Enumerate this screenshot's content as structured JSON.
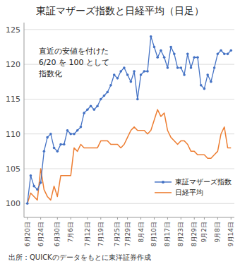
{
  "chart_data": {
    "type": "line",
    "title": "東証マザーズ指数と日経平均（日足）",
    "annotation": "直近の安値を付けた\n6/20 を 100 として\n指数化",
    "source": "出所：QUICKのデータをもとに東洋証券作成",
    "categories": [
      "6月20日",
      null,
      null,
      null,
      "6月24日",
      null,
      null,
      null,
      null,
      "6月30日",
      null,
      null,
      null,
      "7月6日",
      null,
      null,
      null,
      null,
      "7月12日",
      null,
      null,
      null,
      "7月19日",
      null,
      null,
      null,
      null,
      "7月25日",
      null,
      null,
      "7月29日",
      null,
      null,
      null,
      "8月4日",
      null,
      null,
      null,
      "8月10日",
      null,
      null,
      null,
      "8月17日",
      null,
      null,
      null,
      "8月23日",
      null,
      null,
      null,
      "8月29日",
      null,
      null,
      "9月2日",
      null,
      null,
      null,
      "9月8日",
      null,
      null,
      null,
      "9月14日"
    ],
    "series": [
      {
        "name": "東証マザーズ指数",
        "color": "#4472C4",
        "marker": "circle",
        "values": [
          100.0,
          104.0,
          102.5,
          102.0,
          103.0,
          107.5,
          109.5,
          110.0,
          108.0,
          107.5,
          108.5,
          108.5,
          110.5,
          110.0,
          110.0,
          110.5,
          111.0,
          113.0,
          113.5,
          114.0,
          113.5,
          114.0,
          115.0,
          115.5,
          116.0,
          117.0,
          118.5,
          118.0,
          119.0,
          119.5,
          118.5,
          117.5,
          119.0,
          115.0,
          118.5,
          119.0,
          119.0,
          124.0,
          122.5,
          121.0,
          122.0,
          121.0,
          119.5,
          122.5,
          121.5,
          119.5,
          119.5,
          118.5,
          121.5,
          119.5,
          121.0,
          121.0,
          117.0,
          116.5,
          118.5,
          117.5,
          119.5,
          121.5,
          122.0,
          121.5,
          121.5,
          122.0
        ]
      },
      {
        "name": "日経平均",
        "color": "#ED7D31",
        "marker": "none",
        "values": [
          100.0,
          101.5,
          101.0,
          100.5,
          105.0,
          102.0,
          101.0,
          100.5,
          102.5,
          101.0,
          104.0,
          104.0,
          104.0,
          104.0,
          108.0,
          107.5,
          108.5,
          108.0,
          108.0,
          108.0,
          108.0,
          108.0,
          109.0,
          109.0,
          109.0,
          108.5,
          108.5,
          108.5,
          108.0,
          108.5,
          109.5,
          110.5,
          111.0,
          110.5,
          110.5,
          110.5,
          110.0,
          110.5,
          112.0,
          113.5,
          112.5,
          113.0,
          110.5,
          109.5,
          109.0,
          108.5,
          109.0,
          109.0,
          108.5,
          107.5,
          107.5,
          107.0,
          107.0,
          107.0,
          106.5,
          106.5,
          107.0,
          107.5,
          110.0,
          111.0,
          108.0,
          108.0
        ]
      }
    ],
    "ylim": [
      98,
      126
    ],
    "yticks": [
      100,
      105,
      110,
      115,
      120,
      125
    ],
    "grid": true,
    "legend": "lower right"
  }
}
